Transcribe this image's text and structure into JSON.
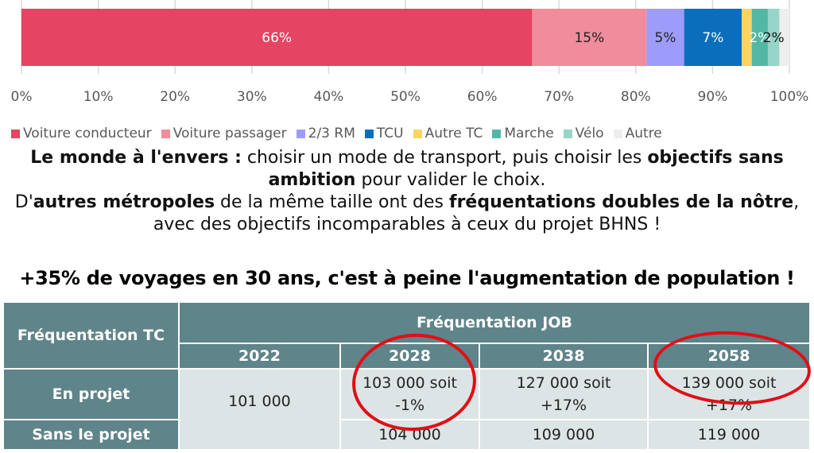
{
  "chart_data": {
    "type": "bar",
    "orientation": "horizontal-stacked-100",
    "title": "",
    "xlabel": "",
    "ylabel": "",
    "xlim": [
      0,
      100
    ],
    "ticks": [
      "0%",
      "10%",
      "20%",
      "30%",
      "40%",
      "50%",
      "60%",
      "70%",
      "80%",
      "90%",
      "100%"
    ],
    "legend_position": "bottom",
    "grid": true,
    "series": [
      {
        "name": "Voiture conducteur",
        "value": 66.5,
        "label": "66%",
        "color": "#e54462",
        "label_color": "#ffffff"
      },
      {
        "name": "Voiture passager",
        "value": 14.9,
        "label": "15%",
        "color": "#f08c9c",
        "label_color": "#222222"
      },
      {
        "name": "2/3 RM",
        "value": 4.9,
        "label": "5%",
        "color": "#9e9cfb",
        "label_color": "#222222"
      },
      {
        "name": "TCU",
        "value": 7.5,
        "label": "7%",
        "color": "#0a6ebd",
        "label_color": "#ffffff"
      },
      {
        "name": "Autre TC",
        "value": 1.3,
        "label": "",
        "color": "#fbd560",
        "label_color": "#ffffff"
      },
      {
        "name": "Marche",
        "value": 2.1,
        "label": "2%",
        "color": "#52b8a4",
        "label_color": "#ffffff"
      },
      {
        "name": "Vélo",
        "value": 1.5,
        "label": "2%",
        "color": "#97d5c8",
        "label_color": "#111111"
      },
      {
        "name": "Autre",
        "value": 1.3,
        "label": "",
        "color": "#eeeeee",
        "label_color": "#111111"
      }
    ]
  },
  "text": {
    "p1_bold1": "Le monde à l'envers :",
    "p1_normal1": " choisir un mode de transport, puis choisir les ",
    "p1_bold2": "objectifs sans ambition",
    "p1_normal2": " pour valider le choix.",
    "p2_normal1": "D'",
    "p2_bold1": "autres métropoles",
    "p2_normal2": " de la même taille ont des ",
    "p2_bold2": "fréquentations doubles de la nôtre",
    "p2_normal3": ", avec des objectifs incomparables à ceux du projet BHNS !",
    "headline": "+35% de voyages en 30 ans, c'est à peine l'augmentation de population !"
  },
  "table": {
    "corner": "Fréquentation TC",
    "group_header": "Fréquentation JOB",
    "years": [
      "2022",
      "2028",
      "2038",
      "2058"
    ],
    "rows": [
      {
        "label": "En projet",
        "values": [
          "101 000",
          "103 000 soit -1%",
          "127 000 soit +17%",
          "139 000 soit +17%"
        ]
      },
      {
        "label": "Sans le projet",
        "values": [
          "101 000",
          "104 000",
          "109 000",
          "119 000"
        ]
      }
    ],
    "cells": {
      "r0_2022": "101 000",
      "r0_2028_a": "103 000 soit",
      "r0_2028_b": "-1%",
      "r0_2038_a": "127 000 soit",
      "r0_2038_b": "+17%",
      "r0_2058_a": "139 000 soit",
      "r0_2058_b": "+17%",
      "r1_2028": "104 000",
      "r1_2038": "109 000",
      "r1_2058": "119 000"
    },
    "highlighted_years": [
      "2028",
      "2058"
    ],
    "highlight_color": "#e30d16"
  }
}
